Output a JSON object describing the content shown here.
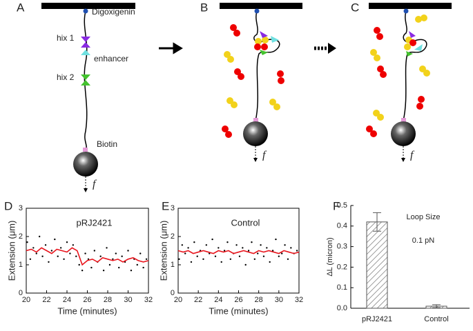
{
  "diagram": {
    "panels": [
      "A",
      "B",
      "C"
    ],
    "labels": {
      "digoxigenin": "Digoxigenin",
      "hix1": "hix 1",
      "enhancer": "enhancer",
      "hix2": "hix 2",
      "biotin": "Biotin"
    },
    "force": [
      "f",
      "f",
      "f"
    ]
  },
  "chart_data": [
    {
      "type": "scatter",
      "label": "D",
      "title": "pRJ2421",
      "xlabel": "Time (minutes)",
      "ylabel": "Extension (μm)",
      "xlim": [
        20,
        32
      ],
      "xticks": [
        20,
        22,
        24,
        26,
        28,
        30,
        32
      ],
      "ylim": [
        0,
        3
      ],
      "yticks": [
        0,
        1,
        2,
        3
      ],
      "series": [
        {
          "type": "scatter",
          "color": "#000000",
          "x": [
            20.1,
            20.4,
            20.7,
            21.0,
            21.3,
            21.6,
            21.9,
            22.2,
            22.5,
            22.8,
            23.1,
            23.4,
            23.7,
            24.0,
            24.3,
            24.6,
            24.9,
            25.2,
            25.5,
            25.8,
            26.1,
            26.4,
            26.7,
            27.0,
            27.3,
            27.6,
            27.9,
            28.2,
            28.5,
            28.8,
            29.1,
            29.4,
            29.7,
            30.0,
            30.3,
            30.6,
            30.9,
            31.2,
            31.5,
            31.8
          ],
          "values": [
            1.8,
            1.2,
            1.6,
            1.4,
            2.0,
            1.3,
            1.7,
            1.1,
            1.5,
            1.9,
            1.3,
            1.6,
            1.2,
            1.8,
            1.4,
            1.7,
            1.3,
            1.0,
            0.8,
            1.4,
            1.2,
            0.9,
            1.5,
            1.1,
            1.3,
            0.8,
            1.6,
            1.0,
            1.2,
            1.4,
            0.9,
            1.3,
            1.1,
            1.5,
            0.8,
            1.2,
            1.0,
            1.4,
            0.9,
            1.2
          ]
        },
        {
          "type": "line",
          "color": "#e8141c",
          "x": [
            20,
            20.5,
            21,
            21.5,
            22,
            22.5,
            23,
            23.5,
            24,
            24.5,
            25,
            25.5,
            26,
            26.5,
            27,
            27.5,
            28,
            28.5,
            29,
            29.5,
            30,
            30.5,
            31,
            31.5,
            32
          ],
          "values": [
            1.5,
            1.55,
            1.45,
            1.6,
            1.5,
            1.4,
            1.55,
            1.5,
            1.45,
            1.6,
            1.5,
            1.0,
            1.15,
            1.2,
            1.1,
            1.25,
            1.2,
            1.15,
            1.2,
            1.1,
            1.2,
            1.25,
            1.15,
            1.1,
            1.15
          ]
        }
      ]
    },
    {
      "type": "scatter",
      "label": "E",
      "title": "Control",
      "xlabel": "Time (minutes)",
      "ylabel": "Extension (μm)",
      "xlim": [
        20,
        32
      ],
      "xticks": [
        20,
        22,
        24,
        26,
        28,
        30,
        32
      ],
      "ylim": [
        0,
        3
      ],
      "yticks": [
        0,
        1,
        2,
        3
      ],
      "series": [
        {
          "type": "scatter",
          "color": "#000000",
          "x": [
            20.1,
            20.4,
            20.7,
            21.0,
            21.3,
            21.6,
            21.9,
            22.2,
            22.5,
            22.8,
            23.1,
            23.4,
            23.7,
            24.0,
            24.3,
            24.6,
            24.9,
            25.2,
            25.5,
            25.8,
            26.1,
            26.4,
            26.7,
            27.0,
            27.3,
            27.6,
            27.9,
            28.2,
            28.5,
            28.8,
            29.1,
            29.4,
            29.7,
            30.0,
            30.3,
            30.6,
            30.9,
            31.2,
            31.5,
            31.8
          ],
          "values": [
            1.2,
            1.7,
            1.4,
            1.6,
            1.1,
            1.8,
            1.3,
            1.5,
            1.2,
            1.7,
            1.4,
            1.9,
            1.3,
            1.6,
            1.1,
            1.5,
            1.8,
            1.2,
            1.4,
            1.7,
            1.3,
            1.6,
            1.0,
            1.5,
            1.8,
            1.2,
            1.4,
            1.7,
            1.3,
            1.6,
            1.1,
            1.5,
            1.9,
            1.3,
            1.4,
            1.7,
            1.2,
            1.6,
            1.4,
            1.5
          ]
        },
        {
          "type": "line",
          "color": "#e8141c",
          "x": [
            20,
            20.5,
            21,
            21.5,
            22,
            22.5,
            23,
            23.5,
            24,
            24.5,
            25,
            25.5,
            26,
            26.5,
            27,
            27.5,
            28,
            28.5,
            29,
            29.5,
            30,
            30.5,
            31,
            31.5,
            32
          ],
          "values": [
            1.5,
            1.45,
            1.5,
            1.4,
            1.45,
            1.5,
            1.45,
            1.4,
            1.5,
            1.45,
            1.5,
            1.4,
            1.45,
            1.5,
            1.45,
            1.4,
            1.5,
            1.45,
            1.5,
            1.45,
            1.4,
            1.5,
            1.45,
            1.4,
            1.45
          ]
        }
      ]
    },
    {
      "type": "bar",
      "label": "F",
      "ylabel": "ΔL (micron)",
      "annotations": [
        "Loop Size",
        "0.1 pN"
      ],
      "categories": [
        "pRJ2421",
        "Control"
      ],
      "values": [
        0.42,
        0.01
      ],
      "errors": [
        0.045,
        0.007
      ],
      "color": "#555555",
      "pattern": "hatch",
      "ylim": [
        0,
        0.5
      ],
      "yticks": [
        {
          "value": 0,
          "label": "0.0"
        },
        0.1,
        0.2,
        0.3,
        0.4,
        0.5
      ]
    }
  ]
}
